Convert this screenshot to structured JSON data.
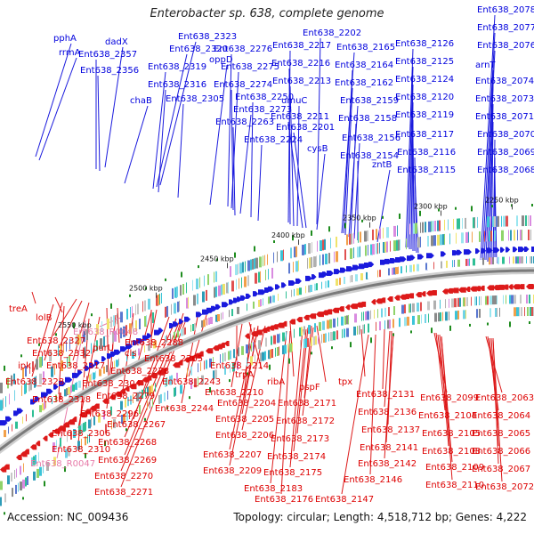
{
  "title": "Enterobacter sp. 638, complete genome",
  "footer": {
    "accession": "Accession: NC_009436",
    "summary": "Topology: circular; Length: 4,518,712 bp; Genes: 4,222"
  },
  "colors": {
    "forward_label": "#0000dd",
    "reverse_label": "#dd0000",
    "rna_label": "#e77aa8",
    "backbone": "#7a7a7a",
    "skew_tick": "#1e8c1e"
  },
  "scale_labels": [
    "2550 kbp",
    "2500 kbp",
    "2450 kbp",
    "2400 kbp",
    "2350 kbp",
    "2300 kbp",
    "2250 kbp"
  ],
  "forward_genes": [
    "pphA",
    "rrmA",
    "dadX",
    "Ent638_2357",
    "Ent638_2356",
    "chaB",
    "Ent638_2323",
    "Ent638_2320",
    "Ent638_2319",
    "Ent638_2316",
    "Ent638_2305",
    "oppD",
    "Ent638_2276",
    "Ent638_2275",
    "Ent638_2274",
    "Ent638_2273",
    "Ent638_2263",
    "Ent638_2250",
    "Ent638_2224",
    "Ent638_2217",
    "Ent638_2202",
    "Ent638_2216",
    "Ent638_2213",
    "umuC",
    "Ent638_2211",
    "Ent638_2201",
    "cysB",
    "Ent638_2165",
    "Ent638_2164",
    "Ent638_2162",
    "Ent638_2159",
    "Ent638_2158",
    "Ent638_2156",
    "Ent638_2154",
    "zntB",
    "Ent638_2126",
    "Ent638_2125",
    "Ent638_2124",
    "Ent638_2120",
    "Ent638_2119",
    "Ent638_2117",
    "Ent638_2116",
    "Ent638_2115",
    "Ent638_2078",
    "Ent638_2077",
    "Ent638_2076",
    "arnT",
    "Ent638_2074",
    "Ent638_2073",
    "Ent638_2071",
    "Ent638_2070",
    "Ent638_2069",
    "Ent638_2068"
  ],
  "reverse_genes": [
    "treA",
    "lolB",
    "Ent638_2327",
    "Ent638_2332",
    "ipk",
    "Ent638_2317",
    "Ent638_2328",
    "Ent638_2318",
    "purU",
    "Ent638_2304",
    "cls",
    "Ent638_2288",
    "Ent638_2278",
    "Ent638_2265",
    "Ent638_2279",
    "Ent638_2243",
    "Ent638_2296",
    "Ent638_2244",
    "Ent638_2267",
    "Ent638_2306",
    "Ent638_2268",
    "Ent638_2310",
    "Ent638_2269",
    "Ent638_2270",
    "Ent638_2271",
    "Ent638_2214",
    "trpA",
    "ribA",
    "Ent638_2210",
    "Ent638_2204",
    "Ent638_2205",
    "Ent638_2206",
    "Ent638_2207",
    "Ent638_2209",
    "pspF",
    "Ent638_2171",
    "Ent638_2172",
    "Ent638_2173",
    "Ent638_2174",
    "Ent638_2175",
    "Ent638_2183",
    "Ent638_2176",
    "tpx",
    "Ent638_2131",
    "Ent638_2136",
    "Ent638_2137",
    "Ent638_2141",
    "Ent638_2142",
    "Ent638_2146",
    "Ent638_2147",
    "Ent638_2099",
    "Ent638_2104",
    "Ent638_2105",
    "Ent638_2108",
    "Ent638_2109",
    "Ent638_2110",
    "Ent638_2063",
    "Ent638_2064",
    "Ent638_2065",
    "Ent638_2066",
    "Ent638_2067",
    "Ent638_2072"
  ],
  "rna_genes": [
    "Ent638_R0048",
    "Ent638_R0047"
  ]
}
